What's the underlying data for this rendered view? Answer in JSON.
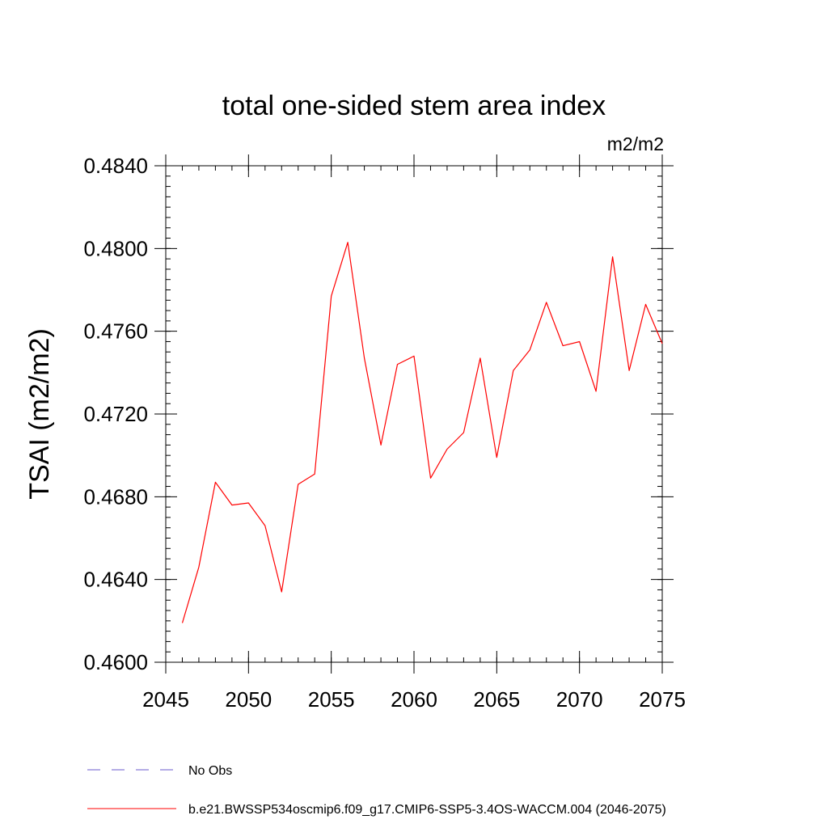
{
  "chart_data": {
    "type": "line",
    "title": "total one-sided stem area index",
    "units_label": "m2/m2",
    "ylabel": "TSAI  (m2/m2)",
    "xlabel": "",
    "xlim": [
      2045,
      2075
    ],
    "ylim": [
      0.46,
      0.484
    ],
    "x_ticks": [
      2045,
      2050,
      2055,
      2060,
      2065,
      2070,
      2075
    ],
    "x_tick_labels": [
      "2045",
      "2050",
      "2055",
      "2060",
      "2065",
      "2070",
      "2075"
    ],
    "y_ticks": [
      0.46,
      0.464,
      0.468,
      0.472,
      0.476,
      0.48,
      0.484
    ],
    "y_tick_labels": [
      "0.4600",
      "0.4640",
      "0.4680",
      "0.4720",
      "0.4760",
      "0.4800",
      "0.4840"
    ],
    "grid": false,
    "legend_position": "bottom",
    "legend": [
      {
        "label": "No Obs",
        "color": "#6a5acd",
        "style": "dashed"
      },
      {
        "label": "b.e21.BWSSP534oscmip6.f09_g17.CMIP6-SSP5-3.4OS-WACCM.004 (2046-2075)",
        "color": "#ff0000",
        "style": "solid"
      }
    ],
    "series": [
      {
        "name": "b.e21.BWSSP534oscmip6.f09_g17.CMIP6-SSP5-3.4OS-WACCM.004 (2046-2075)",
        "color": "#ff0000",
        "x": [
          2046,
          2047,
          2048,
          2049,
          2050,
          2051,
          2052,
          2053,
          2054,
          2055,
          2056,
          2057,
          2058,
          2059,
          2060,
          2061,
          2062,
          2063,
          2064,
          2065,
          2066,
          2067,
          2068,
          2069,
          2070,
          2071,
          2072,
          2073,
          2074,
          2075
        ],
        "values": [
          0.4619,
          0.4646,
          0.4687,
          0.4676,
          0.4677,
          0.4666,
          0.4634,
          0.4686,
          0.4691,
          0.4777,
          0.4803,
          0.4747,
          0.4705,
          0.4744,
          0.4748,
          0.4689,
          0.4703,
          0.4711,
          0.4747,
          0.4699,
          0.4741,
          0.4751,
          0.4774,
          0.4753,
          0.4755,
          0.4731,
          0.4796,
          0.4741,
          0.4773,
          0.4754
        ]
      }
    ]
  }
}
